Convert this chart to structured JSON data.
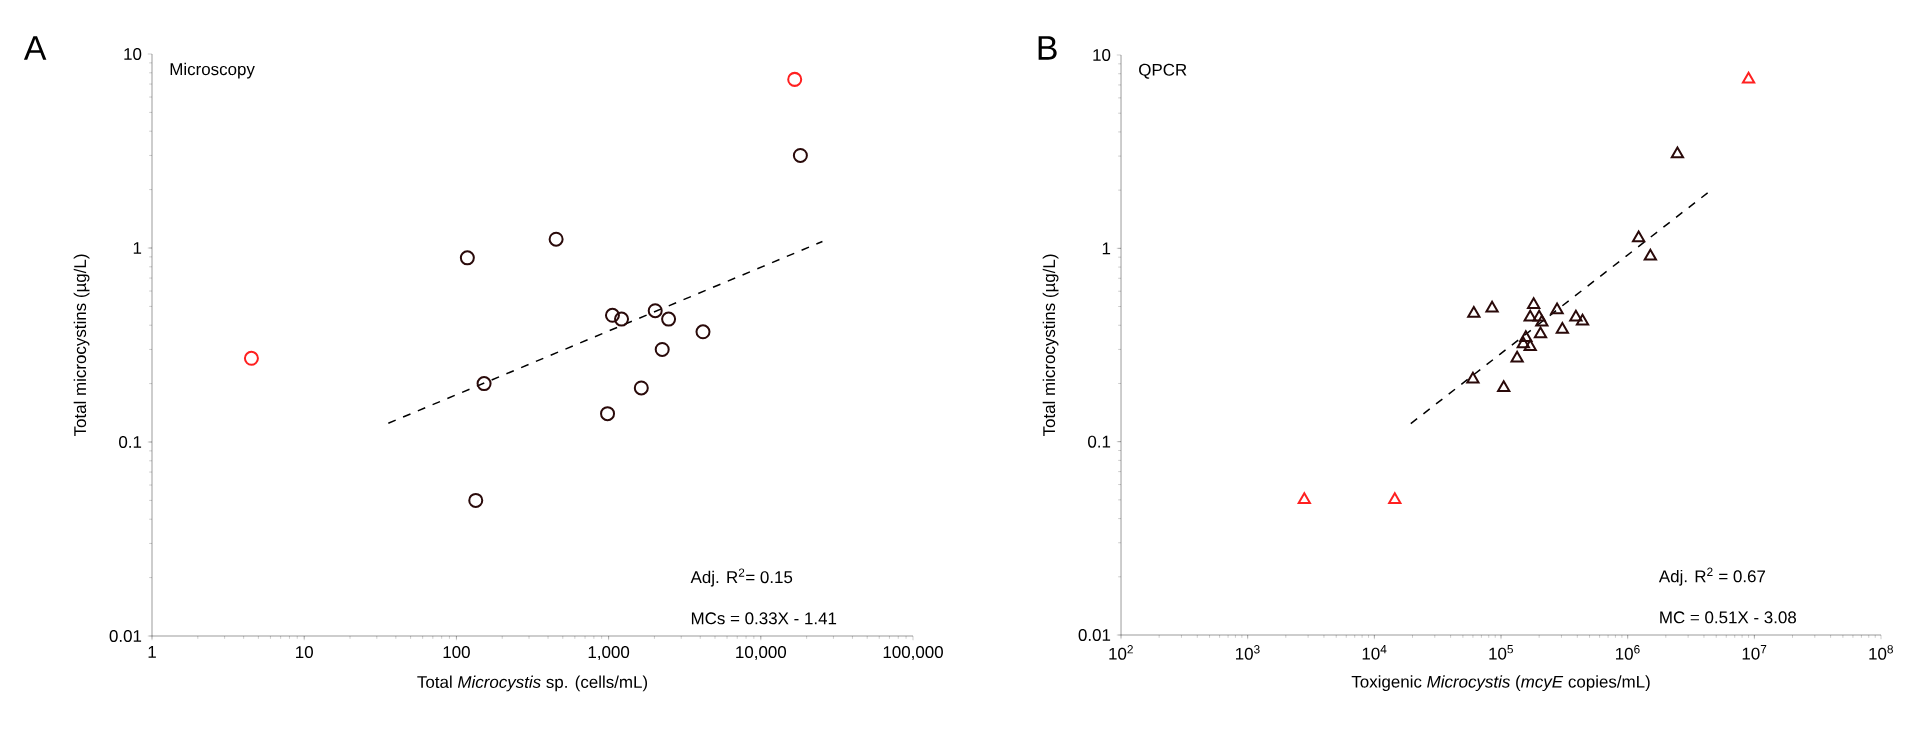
{
  "chart_data": [
    {
      "type": "scatter",
      "title": "A",
      "subtitle": "Microscopy",
      "xlabel": "Total *Microcystis* sp. (cells/mL)",
      "ylabel": "Total microcystins (µg/L)",
      "log": "xy",
      "marker": "circle",
      "xlim": [
        1,
        100000
      ],
      "ylim": [
        0.01,
        10
      ],
      "xticks": [
        1,
        10,
        100,
        {
          "value": 1000,
          "label": "1,000"
        },
        {
          "value": 10000,
          "label": "10,000"
        },
        {
          "value": 100000,
          "label": "100,000"
        }
      ],
      "yticks": [
        0.01,
        0.1,
        1,
        10
      ],
      "annotations": [
        "Adj. R$^{2}$= 0.15",
        "MCs = 0.33X - 1.41"
      ],
      "series": [
        {
          "color": "#2a0a0a",
          "x": [
            118,
            452,
            152,
            134,
            984,
            1060,
            1216,
            2024,
            2478,
            2250,
            1640,
            4170,
            18200
          ],
          "values": [
            0.89,
            1.11,
            0.2,
            0.05,
            0.14,
            0.45,
            0.43,
            0.475,
            0.43,
            0.3,
            0.19,
            0.37,
            3.0
          ]
        },
        {
          "color": "#ff2020",
          "x": [
            4.5,
            16700
          ],
          "values": [
            0.27,
            7.4
          ]
        },
        {
          "type": "line",
          "marker": "none",
          "line_style": "dashed",
          "color": "#000000",
          "x": [
            35.7,
            25400
          ],
          "values": [
            0.125,
            1.08
          ]
        }
      ]
    },
    {
      "type": "scatter",
      "title": "B",
      "subtitle": "QPCR",
      "xlabel": "Toxigenic *Microcystis* (*mcyE* copies/mL)",
      "ylabel": "Total microcystins (µg/L)",
      "log": "xy",
      "marker": "triangle",
      "xlim": [
        100,
        100000000
      ],
      "ylim": [
        0.01,
        10
      ],
      "xticks": [
        {
          "value": 100,
          "label": "10$^{2}$"
        },
        {
          "value": 1000,
          "label": "10$^{3}$"
        },
        {
          "value": 10000,
          "label": "10$^{4}$"
        },
        {
          "value": 100000,
          "label": "10$^{5}$"
        },
        {
          "value": 1000000,
          "label": "10$^{6}$"
        },
        {
          "value": 10000000,
          "label": "10$^{7}$"
        },
        {
          "value": 100000000,
          "label": "10$^{8}$"
        }
      ],
      "yticks": [
        0.01,
        0.1,
        1,
        10
      ],
      "annotations": [
        "Adj. R$^{2}$ = 0.67",
        "MC = 0.51X - 3.08"
      ],
      "series": [
        {
          "color": "#2a0a0a",
          "x": [
            2470000,
            1220000,
            1510000,
            61000,
            85000,
            181000,
            170000,
            200000,
            210000,
            277000,
            390000,
            440000,
            305000,
            205000,
            157000,
            150000,
            170000,
            134000,
            60000,
            105000
          ],
          "values": [
            3.08,
            1.13,
            0.91,
            0.46,
            0.49,
            0.51,
            0.44,
            0.44,
            0.415,
            0.48,
            0.44,
            0.42,
            0.38,
            0.36,
            0.345,
            0.32,
            0.31,
            0.27,
            0.21,
            0.19
          ]
        },
        {
          "color": "#ff2020",
          "x": [
            2800,
            14500,
            9000000
          ],
          "values": [
            0.05,
            0.05,
            7.5
          ]
        },
        {
          "type": "line",
          "marker": "none",
          "line_style": "dashed",
          "color": "#000000",
          "x": [
            19400,
            4600000
          ],
          "values": [
            0.124,
            2.01
          ]
        }
      ]
    }
  ]
}
